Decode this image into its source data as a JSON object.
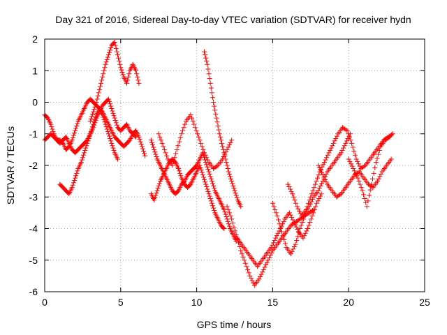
{
  "chart_data": {
    "type": "scatter",
    "title": "Day 321 of 2016, Sidereal Day-to-day VTEC variation (SDTVAR) for receiver hydn",
    "xlabel": "GPS time / hours",
    "ylabel": "SDTVAR / TECUs",
    "xlim": [
      0,
      25
    ],
    "ylim": [
      -6,
      2
    ],
    "xticks": [
      0,
      5,
      10,
      15,
      20,
      25
    ],
    "yticks": [
      -6,
      -5,
      -4,
      -3,
      -2,
      -1,
      0,
      1,
      2
    ],
    "grid": true,
    "marker": "+",
    "color": "#ff0000",
    "series": [
      {
        "x": [
          0.0,
          0.2,
          0.4,
          0.6,
          0.8,
          1.0,
          1.2,
          1.4,
          1.6,
          1.8,
          2.0,
          2.2,
          2.4,
          2.6,
          2.8,
          3.0,
          3.2,
          3.4,
          3.6,
          3.8,
          4.0,
          4.2,
          4.4,
          4.6,
          4.8,
          5.0,
          5.2,
          5.4,
          5.6,
          5.8,
          6.0,
          6.2,
          6.4,
          6.6
        ],
        "y": [
          -1.2,
          -1.1,
          -1.0,
          -1.1,
          -1.2,
          -1.2,
          -1.3,
          -1.5,
          -1.4,
          -1.2,
          -0.9,
          -0.6,
          -0.4,
          -0.2,
          0.0,
          0.1,
          0.0,
          -0.1,
          -0.2,
          -0.3,
          -0.5,
          -0.7,
          -0.9,
          -1.1,
          -1.2,
          -1.3,
          -1.4,
          -1.3,
          -1.2,
          -1.0,
          -0.9,
          -1.1,
          -1.4,
          -1.7
        ]
      },
      {
        "x": [
          0.0,
          0.2,
          0.4,
          0.6,
          0.8,
          1.0,
          1.2,
          1.4,
          1.6,
          1.8,
          2.0,
          2.2,
          2.4,
          2.6,
          2.8,
          3.0,
          3.2,
          3.4,
          3.6,
          3.8,
          4.0,
          4.2,
          4.4,
          4.6,
          4.8,
          5.0,
          5.2,
          5.4,
          5.6,
          5.8,
          6.0
        ],
        "y": [
          -0.4,
          -0.5,
          -0.7,
          -1.0,
          -1.2,
          -1.3,
          -1.2,
          -1.1,
          -1.3,
          -1.5,
          -1.6,
          -1.5,
          -1.4,
          -1.3,
          -1.2,
          -1.0,
          -0.8,
          -0.5,
          -0.3,
          -0.1,
          0.0,
          0.1,
          -0.2,
          -0.5,
          -0.8,
          -0.9,
          -0.8,
          -0.7,
          -0.9,
          -1.0,
          -1.1
        ]
      },
      {
        "x": [
          1.0,
          1.2,
          1.4,
          1.6,
          1.8,
          2.0,
          2.2,
          2.4,
          2.6,
          2.8,
          3.0,
          3.2,
          3.4,
          3.6,
          3.8,
          4.0,
          4.2,
          4.4,
          4.6,
          4.8
        ],
        "y": [
          -2.6,
          -2.7,
          -2.8,
          -2.9,
          -2.7,
          -2.4,
          -2.1,
          -1.9,
          -1.6,
          -1.3,
          -1.0,
          -0.7,
          -0.4,
          -0.2,
          -0.4,
          -0.7,
          -1.0,
          -1.3,
          -1.6,
          -1.8
        ]
      },
      {
        "x": [
          3.0,
          3.2,
          3.4,
          3.6,
          3.8,
          4.0,
          4.2,
          4.4,
          4.6,
          4.8,
          5.0,
          5.2,
          5.4,
          5.6,
          5.8,
          6.0,
          6.2
        ],
        "y": [
          -0.6,
          -0.3,
          0.0,
          0.4,
          0.8,
          1.2,
          1.5,
          1.8,
          1.9,
          1.5,
          1.1,
          0.8,
          0.6,
          1.0,
          1.2,
          1.0,
          0.6
        ]
      },
      {
        "x": [
          7.0,
          7.2,
          7.4,
          7.6,
          7.8,
          8.0,
          8.2,
          8.4,
          8.6,
          8.8,
          9.0,
          9.2,
          9.4,
          9.6,
          9.8,
          10.0,
          10.2,
          10.4,
          10.6,
          10.8,
          11.0,
          11.2,
          11.4,
          11.6,
          11.8,
          12.0,
          12.2,
          12.4,
          12.6
        ],
        "y": [
          -1.2,
          -1.5,
          -1.8,
          -2.0,
          -2.2,
          -2.4,
          -2.6,
          -2.8,
          -2.9,
          -2.8,
          -2.6,
          -2.5,
          -2.3,
          -2.2,
          -2.1,
          -2.0,
          -1.8,
          -1.6,
          -1.9,
          -2.2,
          -2.5,
          -2.8,
          -3.0,
          -3.2,
          -3.4,
          -3.7,
          -4.0,
          -4.2,
          -4.4
        ]
      },
      {
        "x": [
          7.0,
          7.2,
          7.4,
          7.6,
          7.8,
          8.0,
          8.2,
          8.4,
          8.6,
          8.8,
          9.0,
          9.2,
          9.4,
          9.6,
          9.8,
          10.0,
          10.2,
          10.4,
          10.6,
          10.8,
          11.0,
          11.2,
          11.4,
          11.6,
          11.8
        ],
        "y": [
          -2.9,
          -3.1,
          -2.8,
          -2.5,
          -2.3,
          -2.1,
          -1.9,
          -1.8,
          -1.9,
          -2.1,
          -2.4,
          -2.6,
          -2.7,
          -2.6,
          -2.4,
          -2.2,
          -2.0,
          -2.3,
          -2.6,
          -2.9,
          -3.2,
          -3.5,
          -3.7,
          -3.9,
          -4.0
        ]
      },
      {
        "x": [
          7.5,
          7.8,
          8.1,
          8.4,
          8.7,
          9.0,
          9.3,
          9.6,
          9.9,
          10.2,
          10.5,
          10.8,
          11.1,
          11.4,
          11.7,
          12.0,
          12.3
        ],
        "y": [
          -1.0,
          -1.4,
          -1.8,
          -2.0,
          -1.5,
          -1.0,
          -0.6,
          -0.4,
          -0.8,
          -1.2,
          -1.6,
          -1.9,
          -2.1,
          -2.0,
          -1.8,
          -1.5,
          -1.2
        ]
      },
      {
        "x": [
          10.5,
          10.7,
          10.9,
          11.1,
          11.3,
          11.5,
          11.7,
          11.9,
          12.1,
          12.3,
          12.5,
          12.7,
          12.9
        ],
        "y": [
          1.6,
          1.2,
          0.6,
          0.0,
          -0.5,
          -1.0,
          -1.4,
          -1.8,
          -2.2,
          -2.5,
          -2.8,
          -3.1,
          -3.3
        ]
      },
      {
        "x": [
          12.0,
          12.3,
          12.6,
          12.9,
          13.2,
          13.5,
          13.8,
          14.1,
          14.4,
          14.7,
          15.0,
          15.3,
          15.6,
          15.9,
          16.2,
          16.5,
          16.8,
          17.1,
          17.4,
          17.7
        ],
        "y": [
          -3.3,
          -3.7,
          -4.2,
          -4.7,
          -5.1,
          -5.5,
          -5.8,
          -5.6,
          -5.3,
          -5.0,
          -4.7,
          -4.5,
          -4.3,
          -4.1,
          -3.9,
          -3.8,
          -3.7,
          -3.6,
          -3.5,
          -3.4
        ]
      },
      {
        "x": [
          12.5,
          12.8,
          13.1,
          13.4,
          13.7,
          14.0,
          14.3,
          14.6,
          14.9,
          15.2,
          15.5,
          15.8,
          16.1,
          16.4,
          16.7,
          17.0,
          17.3,
          17.6,
          17.9,
          18.2
        ],
        "y": [
          -4.2,
          -4.4,
          -4.6,
          -4.8,
          -5.0,
          -5.2,
          -5.0,
          -4.8,
          -4.6,
          -4.3,
          -4.0,
          -3.7,
          -3.5,
          -3.8,
          -4.1,
          -4.3,
          -4.0,
          -3.6,
          -3.2,
          -2.9
        ]
      },
      {
        "x": [
          15.0,
          15.3,
          15.6,
          15.9,
          16.2,
          16.5,
          16.8,
          17.1,
          17.4,
          17.7,
          18.0,
          18.3,
          18.6,
          18.9,
          19.2,
          19.5,
          19.8,
          20.1
        ],
        "y": [
          -3.2,
          -3.6,
          -4.1,
          -4.6,
          -4.8,
          -4.5,
          -4.0,
          -3.6,
          -3.3,
          -3.0,
          -2.8,
          -2.5,
          -2.2,
          -2.0,
          -1.8,
          -1.6,
          -1.3,
          -1.0
        ]
      },
      {
        "x": [
          16.0,
          16.3,
          16.6,
          16.9,
          17.2,
          17.5,
          17.8,
          18.1,
          18.4,
          18.7,
          19.0,
          19.3,
          19.6,
          19.9,
          20.2,
          20.5,
          20.8,
          21.1,
          21.4,
          21.7,
          22.0,
          22.3,
          22.6,
          22.9
        ],
        "y": [
          -2.6,
          -2.9,
          -3.3,
          -3.6,
          -3.4,
          -3.0,
          -2.6,
          -2.2,
          -1.9,
          -1.6,
          -1.3,
          -1.0,
          -0.8,
          -0.9,
          -1.3,
          -1.8,
          -2.1,
          -2.0,
          -1.8,
          -1.6,
          -1.4,
          -1.2,
          -1.1,
          -1.0
        ]
      },
      {
        "x": [
          18.0,
          18.3,
          18.6,
          18.9,
          19.2,
          19.5,
          19.8,
          20.1,
          20.4,
          20.7,
          21.0,
          21.3,
          21.6,
          21.9,
          22.2,
          22.5,
          22.8
        ],
        "y": [
          -2.0,
          -2.3,
          -2.6,
          -2.8,
          -3.0,
          -2.9,
          -2.7,
          -2.5,
          -2.3,
          -2.2,
          -2.4,
          -2.6,
          -2.7,
          -2.5,
          -2.2,
          -2.0,
          -1.8
        ]
      },
      {
        "x": [
          20.0,
          20.3,
          20.6,
          20.9,
          21.2,
          21.5,
          21.8,
          22.1,
          22.4,
          22.7
        ],
        "y": [
          -1.8,
          -2.1,
          -2.4,
          -2.8,
          -3.3,
          -2.6,
          -1.9,
          -1.4,
          -1.2,
          -1.1
        ]
      }
    ]
  }
}
